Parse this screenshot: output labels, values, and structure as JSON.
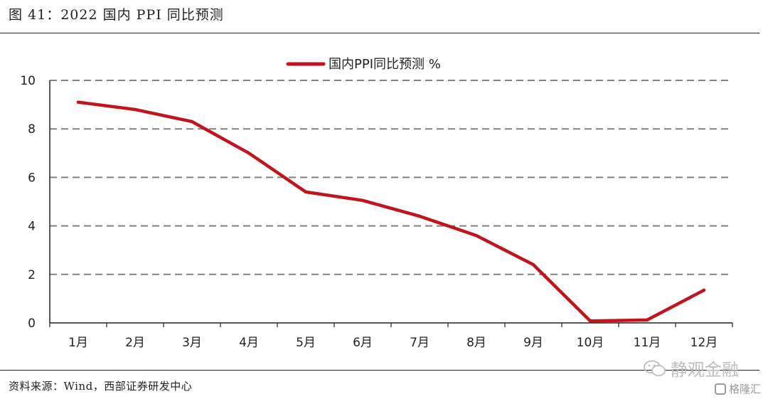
{
  "figure": {
    "title": "图 41：2022 国内 PPI 同比预测",
    "source": "资料来源：Wind，西部证券研发中心",
    "watermark": "静观金融",
    "logo_text": "格隆汇"
  },
  "colors": {
    "series": "#c0141e",
    "grid": "#808080",
    "axis": "#222222"
  },
  "chart_data": {
    "type": "line",
    "categories": [
      "1月",
      "2月",
      "3月",
      "4月",
      "5月",
      "6月",
      "7月",
      "8月",
      "9月",
      "10月",
      "11月",
      "12月"
    ],
    "series": [
      {
        "name": "国内PPI同比预测 %",
        "values": [
          9.1,
          8.8,
          8.3,
          7.0,
          5.4,
          5.05,
          4.4,
          3.6,
          2.4,
          0.08,
          0.12,
          1.35
        ]
      }
    ],
    "ylim": [
      0,
      10
    ],
    "yticks": [
      0,
      2,
      4,
      6,
      8,
      10
    ],
    "grid": true,
    "legend_position": "top-center"
  }
}
